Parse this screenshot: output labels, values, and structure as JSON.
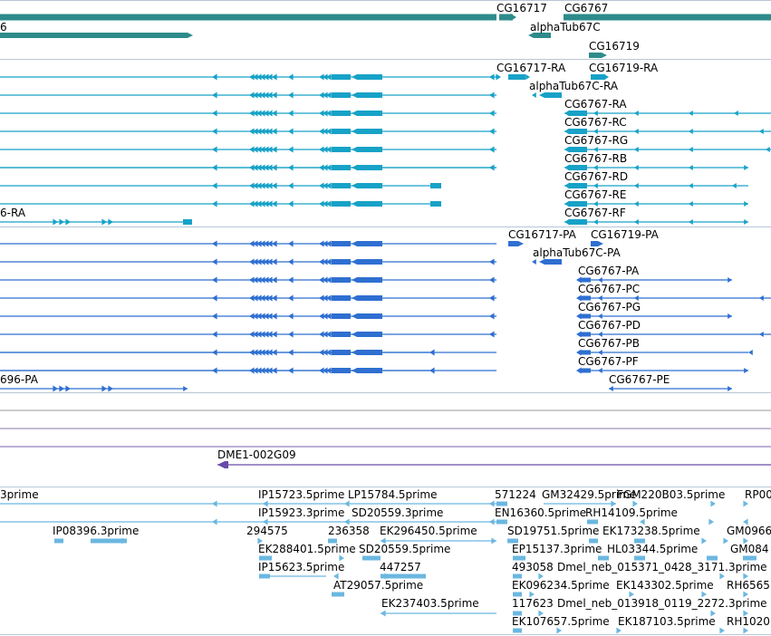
{
  "palette": {
    "gene": "#2e8b8b",
    "transcript": "#17a2c7",
    "protein": "#2e6fd1",
    "clone": "#6a4aa8",
    "est": "#6bb7e0",
    "divider": "#b8c8d6",
    "background": "#ffffff"
  },
  "tracks": {
    "genes": {
      "labels": [
        "CG16717",
        "CG6767",
        "6",
        "alphaTub67C",
        "CG16719"
      ]
    },
    "transcripts": {
      "labels": [
        "CG16717-RA",
        "CG16719-RA",
        "alphaTub67C-RA",
        "CG6767-RA",
        "CG6767-RC",
        "CG6767-RG",
        "CG6767-RB",
        "CG6767-RD",
        "CG6767-RE",
        "CG6767-RF",
        "6-RA"
      ]
    },
    "proteins": {
      "labels": [
        "CG16717-PA",
        "CG16719-PA",
        "alphaTub67C-PA",
        "CG6767-PA",
        "CG6767-PC",
        "CG6767-PG",
        "CG6767-PD",
        "CG6767-PB",
        "CG6767-PF",
        "CG6767-PE",
        "696-PA"
      ]
    },
    "clones": {
      "labels": [
        "DME1-002G09"
      ]
    },
    "ests": {
      "labels": [
        "3prime",
        "IP15723.5prime",
        "LP15784.5prime",
        "571224",
        "GM32429.5prime",
        "FGM220B03.5prime",
        "RP00",
        "IP15923.3prime",
        "SD20559.3prime",
        "EN16360.5prime",
        "RH14109.5prime",
        "IP08396.3prime",
        "294575",
        "236358",
        "EK296450.5prime",
        "SD19751.5prime",
        "EK173238.5prime",
        "GM0966",
        "EK288401.5prime",
        "SD20559.5prime",
        "EP15137.3prime",
        "HL03344.5prime",
        "GM084",
        "IP15623.5prime",
        "447257",
        "493058",
        "Dmel_neb_015371_0428_3171.3prime",
        "AT29057.5prime",
        "EK096234.5prime",
        "EK143302.5prime",
        "RH6565",
        "EK237403.5prime",
        "117623",
        "Dmel_neb_013918_0119_2272.3prime",
        "EK107657.5prime",
        "EK187103.5prime",
        "RH1020"
      ]
    }
  }
}
